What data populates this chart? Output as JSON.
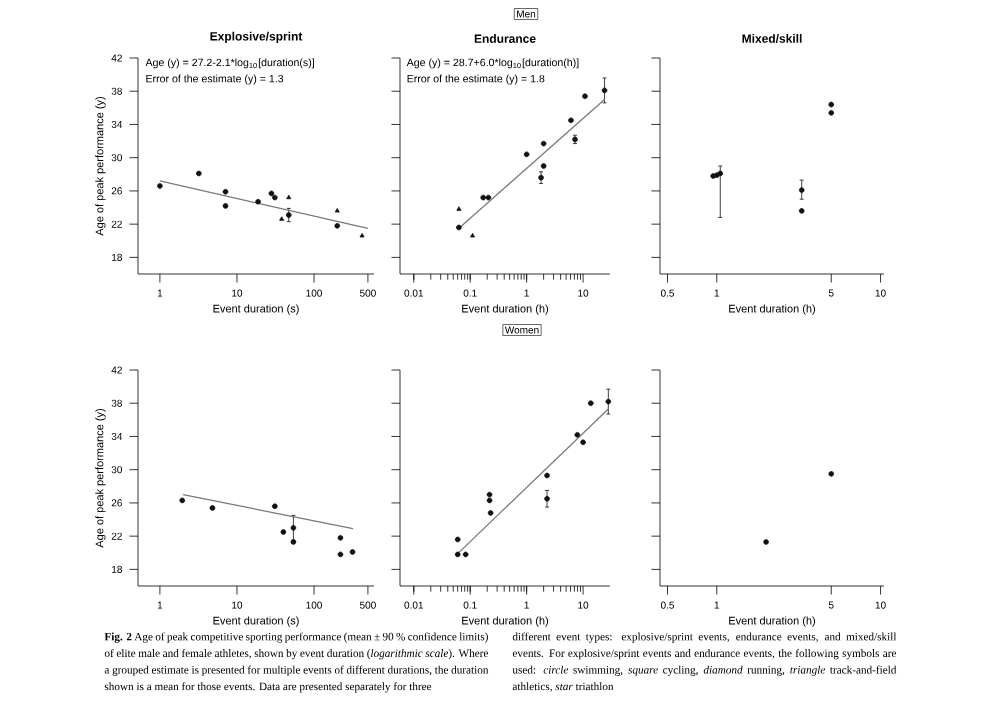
{
  "chart_data": [
    {
      "type": "scatter",
      "title": "Explosive/sprint",
      "xlabel": "Event duration (s)",
      "ylabel": "Age of peak performance (y)",
      "log": "x",
      "xlim": [
        0.52,
        600
      ],
      "ylim": [
        16,
        42
      ],
      "xticks": [
        1,
        10,
        100,
        500
      ],
      "yticks": [
        18,
        22,
        26,
        30,
        34,
        38,
        42
      ],
      "annotations": [
        "Age (y) = 27.2-2.1*log$_{10}$[duration(s)]",
        "Error of the estimate (y) = 1.3"
      ],
      "series": [
        {
          "type": "scatter",
          "marker": "circle",
          "color": "#111111",
          "x": [
            1,
            3.2,
            7.1,
            7.1,
            18.8,
            28,
            31,
            47,
            200
          ],
          "values": [
            26.6,
            28.1,
            25.9,
            24.2,
            24.7,
            25.7,
            25.2,
            23.1,
            21.8
          ],
          "errors": [
            null,
            null,
            null,
            null,
            null,
            null,
            null,
            0.8,
            null
          ]
        },
        {
          "type": "scatter",
          "marker": "triangle",
          "color": "#111111",
          "x": [
            38,
            47,
            200,
            420
          ],
          "values": [
            22.6,
            25.2,
            23.6,
            20.6
          ]
        },
        {
          "type": "line",
          "line_style": "solid",
          "color": "#777777",
          "x": [
            1,
            500
          ],
          "values": [
            27.2,
            21.5
          ]
        }
      ]
    },
    {
      "type": "scatter",
      "title": "Endurance",
      "xlabel": "Event duration (h)",
      "log": "x",
      "xlim": [
        0.0057,
        30
      ],
      "ylim": [
        16,
        42
      ],
      "xticks": [
        0.01,
        0.1,
        1,
        10
      ],
      "yticks": [
        18,
        22,
        26,
        30,
        34,
        38,
        42
      ],
      "tick_labels": "x",
      "annotations": [
        "Age (y) = 28.7+6.0*log$_{10}$[duration(h)]",
        "Error of the estimate (y) = 1.8"
      ],
      "series": [
        {
          "type": "scatter",
          "marker": "circle",
          "color": "#111111",
          "x": [
            0.063,
            0.17,
            0.21,
            1.0,
            1.8,
            2.0,
            2.0,
            6.1,
            7.2,
            10.8,
            24
          ],
          "values": [
            21.6,
            25.2,
            25.2,
            30.4,
            27.6,
            29.0,
            31.7,
            34.5,
            32.2,
            37.4,
            38.1
          ],
          "errors": [
            null,
            null,
            null,
            null,
            0.7,
            null,
            null,
            null,
            0.5,
            null,
            1.5
          ]
        },
        {
          "type": "scatter",
          "marker": "triangle",
          "color": "#111111",
          "x": [
            0.063,
            0.11
          ],
          "values": [
            23.8,
            20.6
          ]
        },
        {
          "type": "line",
          "line_style": "solid",
          "color": "#777777",
          "x": [
            0.063,
            24
          ],
          "values": [
            21.5,
            37.0
          ]
        }
      ]
    },
    {
      "type": "scatter",
      "title": "Mixed/skill",
      "xlabel": "Event duration (h)",
      "log": "x",
      "xlim": [
        0.45,
        10.5
      ],
      "ylim": [
        16,
        42
      ],
      "xticks": [
        0.5,
        1,
        5,
        10
      ],
      "yticks": [
        18,
        22,
        26,
        30,
        34,
        38,
        42
      ],
      "tick_labels": "x",
      "series": [
        {
          "type": "scatter",
          "marker": "circle",
          "color": "#111111",
          "x": [
            0.95,
            1.0,
            1.05,
            3.3,
            3.3,
            5.0,
            5.0
          ],
          "values": [
            27.8,
            27.9,
            28.1,
            26.1,
            23.6,
            35.4,
            36.4
          ],
          "errors": [
            null,
            null,
            [
              22.8,
              29.0
            ],
            [
              25.0,
              27.3
            ],
            null,
            null,
            null
          ]
        }
      ]
    },
    {
      "type": "scatter",
      "xlabel": "Event duration (s)",
      "ylabel": "Age of peak performance (y)",
      "log": "x",
      "xlim": [
        0.52,
        600
      ],
      "ylim": [
        16,
        42
      ],
      "xticks": [
        1,
        10,
        100,
        500
      ],
      "yticks": [
        18,
        22,
        26,
        30,
        34,
        38,
        42
      ],
      "series": [
        {
          "type": "scatter",
          "marker": "circle",
          "color": "#111111",
          "x": [
            1.95,
            4.8,
            31,
            40,
            54,
            54,
            220,
            220,
            316
          ],
          "values": [
            26.3,
            25.4,
            25.6,
            22.5,
            23.0,
            21.3,
            21.8,
            19.8,
            20.1
          ],
          "errors": [
            null,
            null,
            null,
            null,
            1.5,
            null,
            null,
            null,
            null
          ]
        },
        {
          "type": "line",
          "line_style": "solid",
          "color": "#777777",
          "x": [
            2,
            320
          ],
          "values": [
            27.0,
            22.9
          ]
        }
      ]
    },
    {
      "type": "scatter",
      "xlabel": "Event duration (h)",
      "log": "x",
      "xlim": [
        0.0057,
        30
      ],
      "ylim": [
        16,
        42
      ],
      "xticks": [
        0.01,
        0.1,
        1,
        10
      ],
      "yticks": [
        18,
        22,
        26,
        30,
        34,
        38,
        42
      ],
      "tick_labels": "x",
      "series": [
        {
          "type": "scatter",
          "marker": "circle",
          "color": "#111111",
          "x": [
            0.06,
            0.06,
            0.083,
            0.22,
            0.22,
            0.23,
            2.3,
            2.3,
            7.9,
            10,
            13.7,
            28
          ],
          "values": [
            21.6,
            19.8,
            19.8,
            26.3,
            27.0,
            24.8,
            29.3,
            26.5,
            34.2,
            33.3,
            38.0,
            38.2
          ],
          "errors": [
            null,
            null,
            null,
            null,
            null,
            null,
            null,
            1.0,
            null,
            null,
            null,
            1.5
          ]
        },
        {
          "type": "line",
          "line_style": "solid",
          "color": "#777777",
          "x": [
            0.06,
            28
          ],
          "values": [
            19.9,
            37.3
          ]
        }
      ]
    },
    {
      "type": "scatter",
      "xlabel": "Event duration (h)",
      "log": "x",
      "xlim": [
        0.45,
        10.5
      ],
      "ylim": [
        16,
        42
      ],
      "xticks": [
        0.5,
        1,
        5,
        10
      ],
      "yticks": [
        18,
        22,
        26,
        30,
        34,
        38,
        42
      ],
      "tick_labels": "x",
      "series": [
        {
          "type": "scatter",
          "marker": "circle",
          "color": "#111111",
          "x": [
            2.0,
            5.0
          ],
          "values": [
            21.3,
            29.5
          ]
        }
      ]
    },
    {
      "type": "other",
      "annotations": [
        "Men",
        "Women",
        "**Fig. 2** Age of peak competitive sporting performance (mean ± 90 % confidence limits) of elite male and female athletes, shown by event duration (*logarithmic scale*). Where a grouped estimate is presented for multiple events of different durations, the duration shown is a mean for those events. Data are presented separately for three",
        "different event types: explosive/sprint events, endurance events, and mixed/skill events. For explosive/sprint events and endurance events, the following symbols are used: *circle* swimming, *square* cycling, *diamond* running, *triangle* track-and-field athletics, *star* triathlon"
      ]
    }
  ]
}
